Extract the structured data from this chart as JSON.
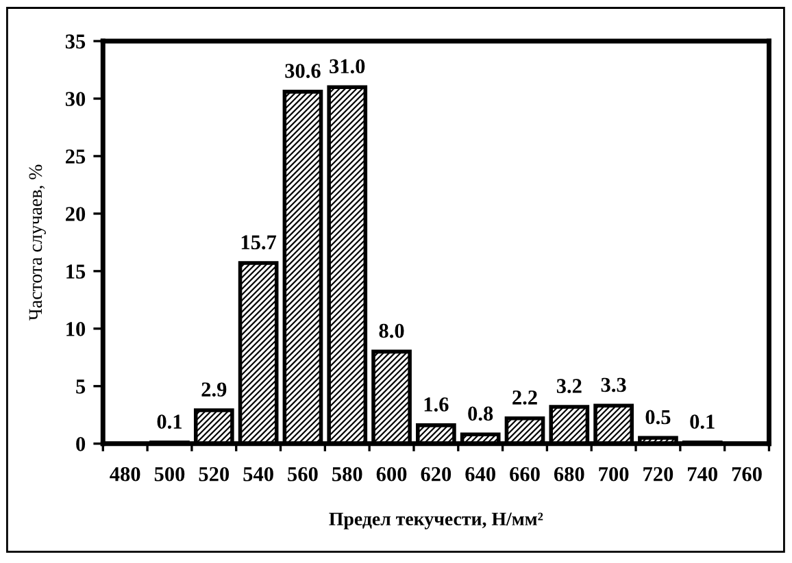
{
  "chart_data": {
    "type": "bar",
    "categories": [
      "480",
      "500",
      "520",
      "540",
      "560",
      "580",
      "600",
      "620",
      "640",
      "660",
      "680",
      "700",
      "720",
      "740",
      "760"
    ],
    "values": [
      null,
      0.1,
      2.9,
      15.7,
      30.6,
      31.0,
      8.0,
      1.6,
      0.8,
      2.2,
      3.2,
      3.3,
      0.5,
      0.1,
      null
    ],
    "value_labels": [
      null,
      "0.1",
      "2.9",
      "15.7",
      "30.6",
      "31.0",
      "8.0",
      "1.6",
      "0.8",
      "2.2",
      "3.2",
      "3.3",
      "0.5",
      "0.1",
      null
    ],
    "color": "#000000",
    "xlabel": "Предел текучести, Н/мм²",
    "ylabel": "Частота случаев, %",
    "ylim": [
      0,
      35
    ],
    "yticks": [
      0,
      5,
      10,
      15,
      20,
      25,
      30,
      35
    ],
    "grid": false,
    "legend": false
  }
}
